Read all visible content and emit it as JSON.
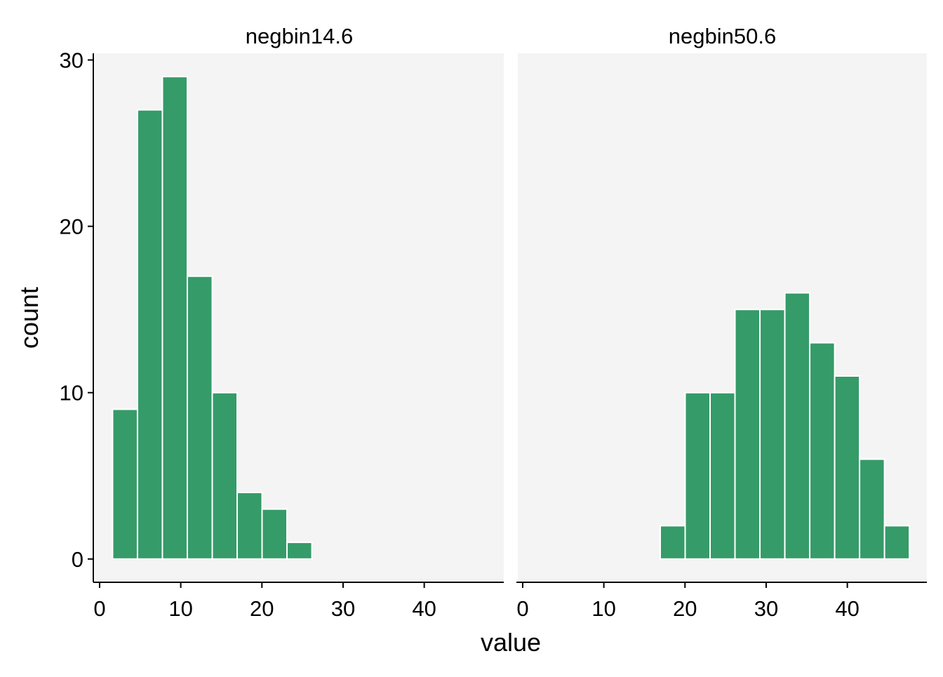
{
  "chart_data": {
    "type": "bar",
    "subtype": "faceted-histogram",
    "xlabel": "value",
    "ylabel": "count",
    "xlim": [
      -0.6,
      49.8
    ],
    "ylim": [
      -1.4,
      30.4
    ],
    "x_ticks": [
      0,
      10,
      20,
      30,
      40
    ],
    "y_ticks": [
      0,
      10,
      20,
      30
    ],
    "bin_width": 3.07,
    "grid": false,
    "legend": "none",
    "colors": {
      "bar_fill": "#359b69",
      "bar_outline": "#ffffff",
      "panel_background": "#f4f4f4",
      "axis": "#000000"
    },
    "panels": [
      {
        "name": "negbin14.6",
        "bins": [
          {
            "x0": 1.6,
            "x1": 4.67,
            "count": 9
          },
          {
            "x0": 4.67,
            "x1": 7.74,
            "count": 27
          },
          {
            "x0": 7.74,
            "x1": 10.81,
            "count": 29
          },
          {
            "x0": 10.81,
            "x1": 13.88,
            "count": 17
          },
          {
            "x0": 13.88,
            "x1": 16.95,
            "count": 10
          },
          {
            "x0": 16.95,
            "x1": 20.02,
            "count": 4
          },
          {
            "x0": 20.02,
            "x1": 23.09,
            "count": 3
          },
          {
            "x0": 23.09,
            "x1": 26.16,
            "count": 1
          },
          {
            "x0": 26.16,
            "x1": 29.23,
            "count": 0
          },
          {
            "x0": 29.23,
            "x1": 32.3,
            "count": 0
          },
          {
            "x0": 32.3,
            "x1": 35.37,
            "count": 0
          },
          {
            "x0": 35.37,
            "x1": 38.44,
            "count": 0
          },
          {
            "x0": 38.44,
            "x1": 41.51,
            "count": 0
          },
          {
            "x0": 41.51,
            "x1": 44.58,
            "count": 0
          },
          {
            "x0": 44.58,
            "x1": 47.65,
            "count": 0
          }
        ]
      },
      {
        "name": "negbin50.6",
        "bins": [
          {
            "x0": 1.6,
            "x1": 4.67,
            "count": 0
          },
          {
            "x0": 4.67,
            "x1": 7.74,
            "count": 0
          },
          {
            "x0": 7.74,
            "x1": 10.81,
            "count": 0
          },
          {
            "x0": 10.81,
            "x1": 13.88,
            "count": 0
          },
          {
            "x0": 13.88,
            "x1": 16.95,
            "count": 0
          },
          {
            "x0": 16.95,
            "x1": 20.02,
            "count": 2
          },
          {
            "x0": 20.02,
            "x1": 23.09,
            "count": 10
          },
          {
            "x0": 23.09,
            "x1": 26.16,
            "count": 10
          },
          {
            "x0": 26.16,
            "x1": 29.23,
            "count": 15
          },
          {
            "x0": 29.23,
            "x1": 32.3,
            "count": 15
          },
          {
            "x0": 32.3,
            "x1": 35.37,
            "count": 16
          },
          {
            "x0": 35.37,
            "x1": 38.44,
            "count": 13
          },
          {
            "x0": 38.44,
            "x1": 41.51,
            "count": 11
          },
          {
            "x0": 41.51,
            "x1": 44.58,
            "count": 6
          },
          {
            "x0": 44.58,
            "x1": 47.65,
            "count": 2
          }
        ]
      }
    ]
  }
}
